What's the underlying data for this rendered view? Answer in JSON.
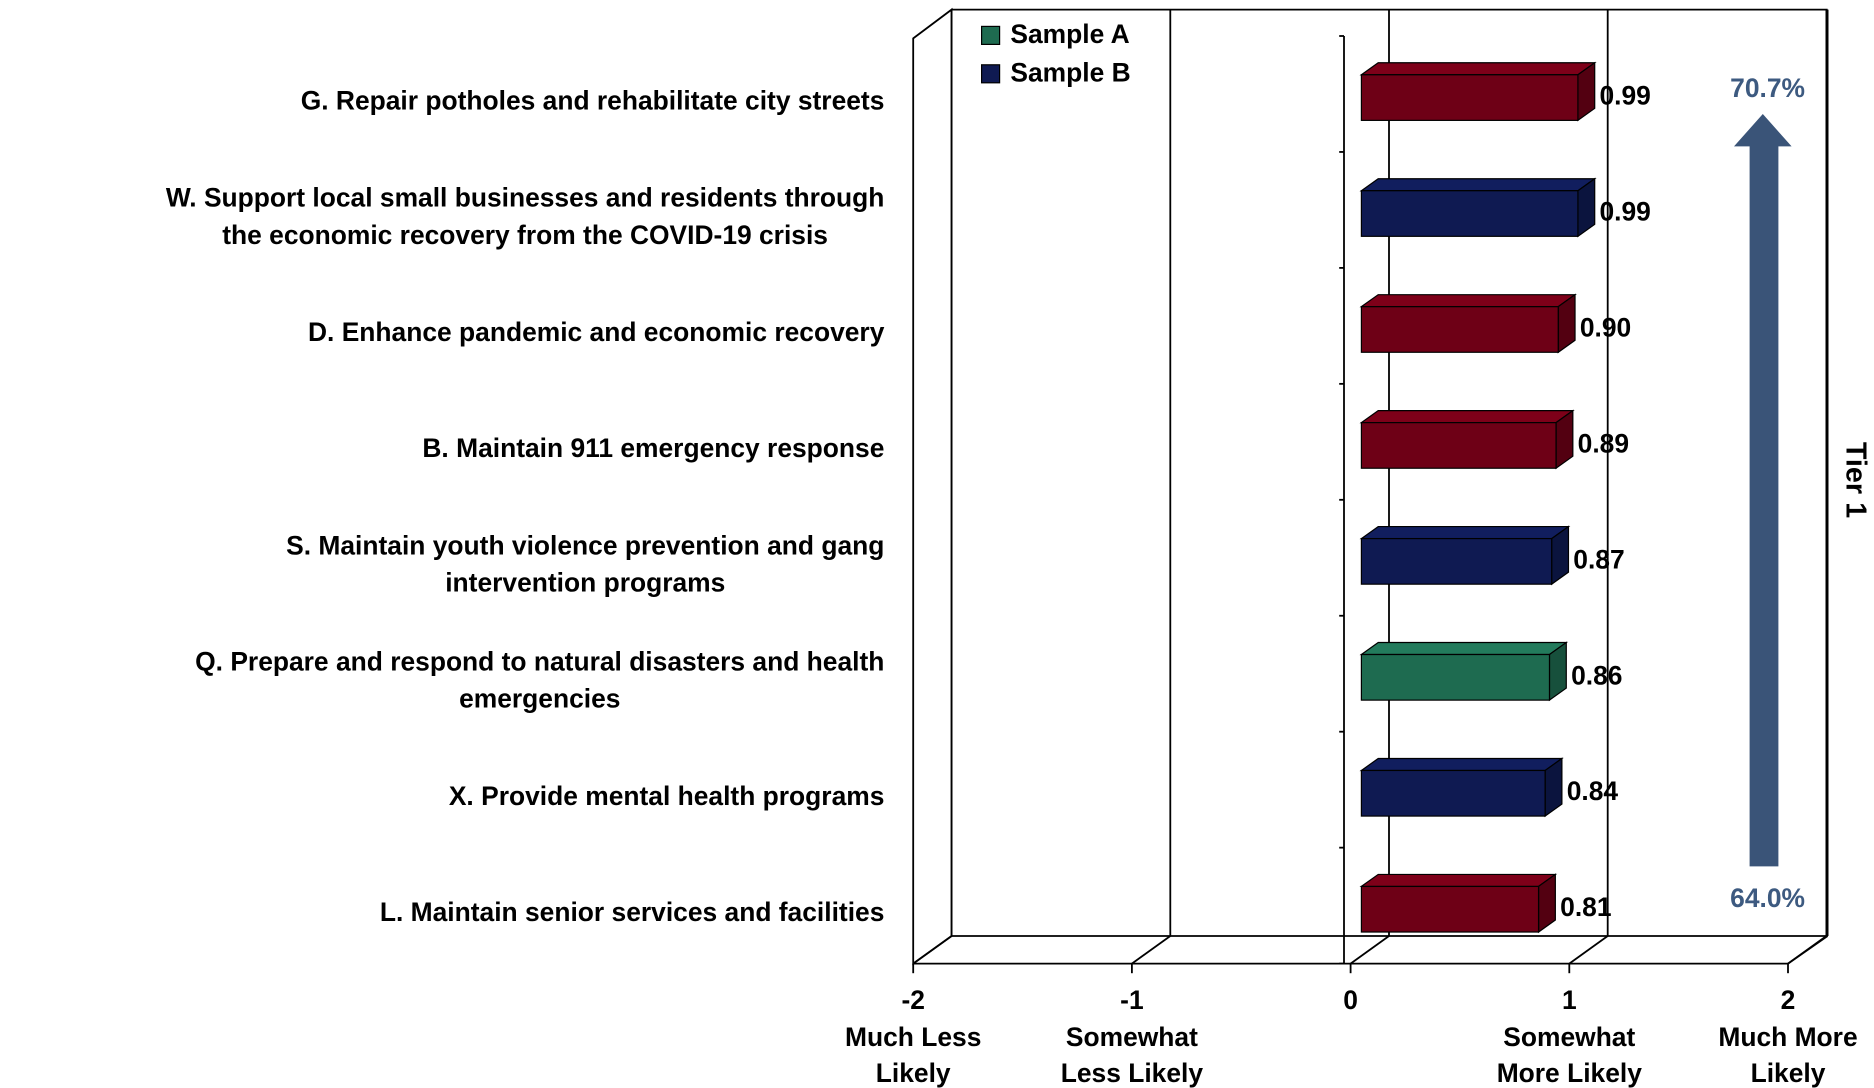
{
  "chart_data": {
    "type": "bar3d_horizontal",
    "categories": [
      [
        "G. Repair potholes and rehabilitate city streets"
      ],
      [
        "W. Support local small businesses and residents through",
        "the economic recovery from the COVID-19 crisis"
      ],
      [
        "D. Enhance pandemic and economic recovery"
      ],
      [
        "B. Maintain 911 emergency response"
      ],
      [
        "S. Maintain youth violence prevention and gang",
        "intervention programs"
      ],
      [
        "Q. Prepare and respond to natural disasters and health",
        "emergencies"
      ],
      [
        "X. Provide mental health programs"
      ],
      [
        "L. Maintain senior services and facilities"
      ]
    ],
    "values": [
      0.99,
      0.99,
      0.9,
      0.89,
      0.87,
      0.86,
      0.84,
      0.81
    ],
    "value_labels": [
      "0.99",
      "0.99",
      "0.90",
      "0.89",
      "0.87",
      "0.86",
      "0.84",
      "0.81"
    ],
    "colors": [
      "#6e0016",
      "#0f1a52",
      "#6e0016",
      "#6e0016",
      "#0f1a52",
      "#1e6b50",
      "#0f1a52",
      "#6e0016"
    ],
    "legend": [
      {
        "name": "Sample A",
        "color": "#1e6b50"
      },
      {
        "name": "Sample B",
        "color": "#0f1a52"
      }
    ],
    "xlim": [
      -2,
      2
    ],
    "xticks": [
      -2,
      -1,
      0,
      1,
      2
    ],
    "xtick_captions": [
      [
        "Much Less",
        "Likely"
      ],
      [
        "Somewhat",
        "Less Likely"
      ],
      null,
      [
        "Somewhat",
        "More Likely"
      ],
      [
        "Much More",
        "Likely"
      ]
    ],
    "annotations": {
      "top": "70.7%",
      "bottom": "64.0%",
      "tier": "Tier 1"
    },
    "grid": true
  }
}
